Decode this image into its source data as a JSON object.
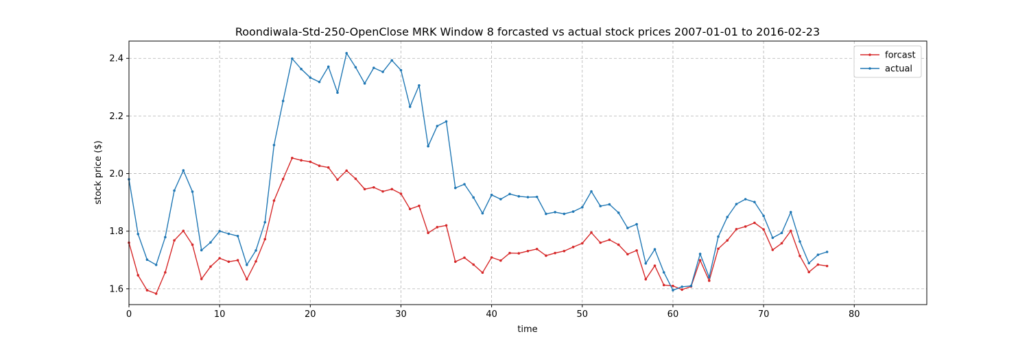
{
  "chart_data": {
    "type": "line",
    "title": "Roondiwala-Std-250-OpenClose MRK Window 8 forcasted vs actual stock prices 2007-01-01 to 2016-02-23",
    "xlabel": "time",
    "ylabel": "stock price ($)",
    "xlim": [
      0,
      88
    ],
    "ylim": [
      1.545,
      2.46
    ],
    "xticks": [
      0,
      10,
      20,
      30,
      40,
      50,
      60,
      70,
      80
    ],
    "yticks": [
      1.6,
      1.8,
      2.0,
      2.2,
      2.4
    ],
    "xtick_labels": [
      "0",
      "10",
      "20",
      "30",
      "40",
      "50",
      "60",
      "70",
      "80"
    ],
    "ytick_labels": [
      "1.6",
      "1.8",
      "2.0",
      "2.2",
      "2.4"
    ],
    "grid": true,
    "legend_position": "top-right",
    "series": [
      {
        "name": "forcast",
        "color": "#d62728",
        "values": [
          1.76,
          1.647,
          1.595,
          1.583,
          1.657,
          1.768,
          1.801,
          1.753,
          1.634,
          1.677,
          1.706,
          1.694,
          1.699,
          1.633,
          1.695,
          1.772,
          1.906,
          1.981,
          2.054,
          2.046,
          2.041,
          2.027,
          2.021,
          1.979,
          2.01,
          1.982,
          1.946,
          1.952,
          1.938,
          1.946,
          1.93,
          1.877,
          1.888,
          1.794,
          1.814,
          1.82,
          1.694,
          1.708,
          1.684,
          1.656,
          1.709,
          1.698,
          1.724,
          1.723,
          1.731,
          1.738,
          1.715,
          1.724,
          1.731,
          1.745,
          1.758,
          1.795,
          1.76,
          1.77,
          1.753,
          1.72,
          1.733,
          1.633,
          1.68,
          1.613,
          1.61,
          1.597,
          1.608,
          1.699,
          1.628,
          1.739,
          1.768,
          1.807,
          1.816,
          1.829,
          1.806,
          1.735,
          1.758,
          1.801,
          1.714,
          1.658,
          1.684,
          1.679
        ]
      },
      {
        "name": "actual",
        "color": "#1f77b4",
        "values": [
          1.98,
          1.79,
          1.701,
          1.683,
          1.779,
          1.941,
          2.011,
          1.937,
          1.734,
          1.761,
          1.8,
          1.791,
          1.783,
          1.683,
          1.733,
          1.831,
          2.099,
          2.252,
          2.399,
          2.363,
          2.333,
          2.318,
          2.371,
          2.281,
          2.418,
          2.369,
          2.313,
          2.367,
          2.353,
          2.393,
          2.359,
          2.232,
          2.306,
          2.095,
          2.165,
          2.181,
          1.95,
          1.963,
          1.917,
          1.862,
          1.926,
          1.911,
          1.929,
          1.921,
          1.918,
          1.919,
          1.86,
          1.866,
          1.86,
          1.868,
          1.883,
          1.938,
          1.887,
          1.893,
          1.864,
          1.811,
          1.824,
          1.688,
          1.737,
          1.657,
          1.595,
          1.607,
          1.61,
          1.721,
          1.64,
          1.781,
          1.849,
          1.894,
          1.911,
          1.901,
          1.853,
          1.777,
          1.794,
          1.866,
          1.764,
          1.689,
          1.718,
          1.728
        ]
      }
    ]
  }
}
